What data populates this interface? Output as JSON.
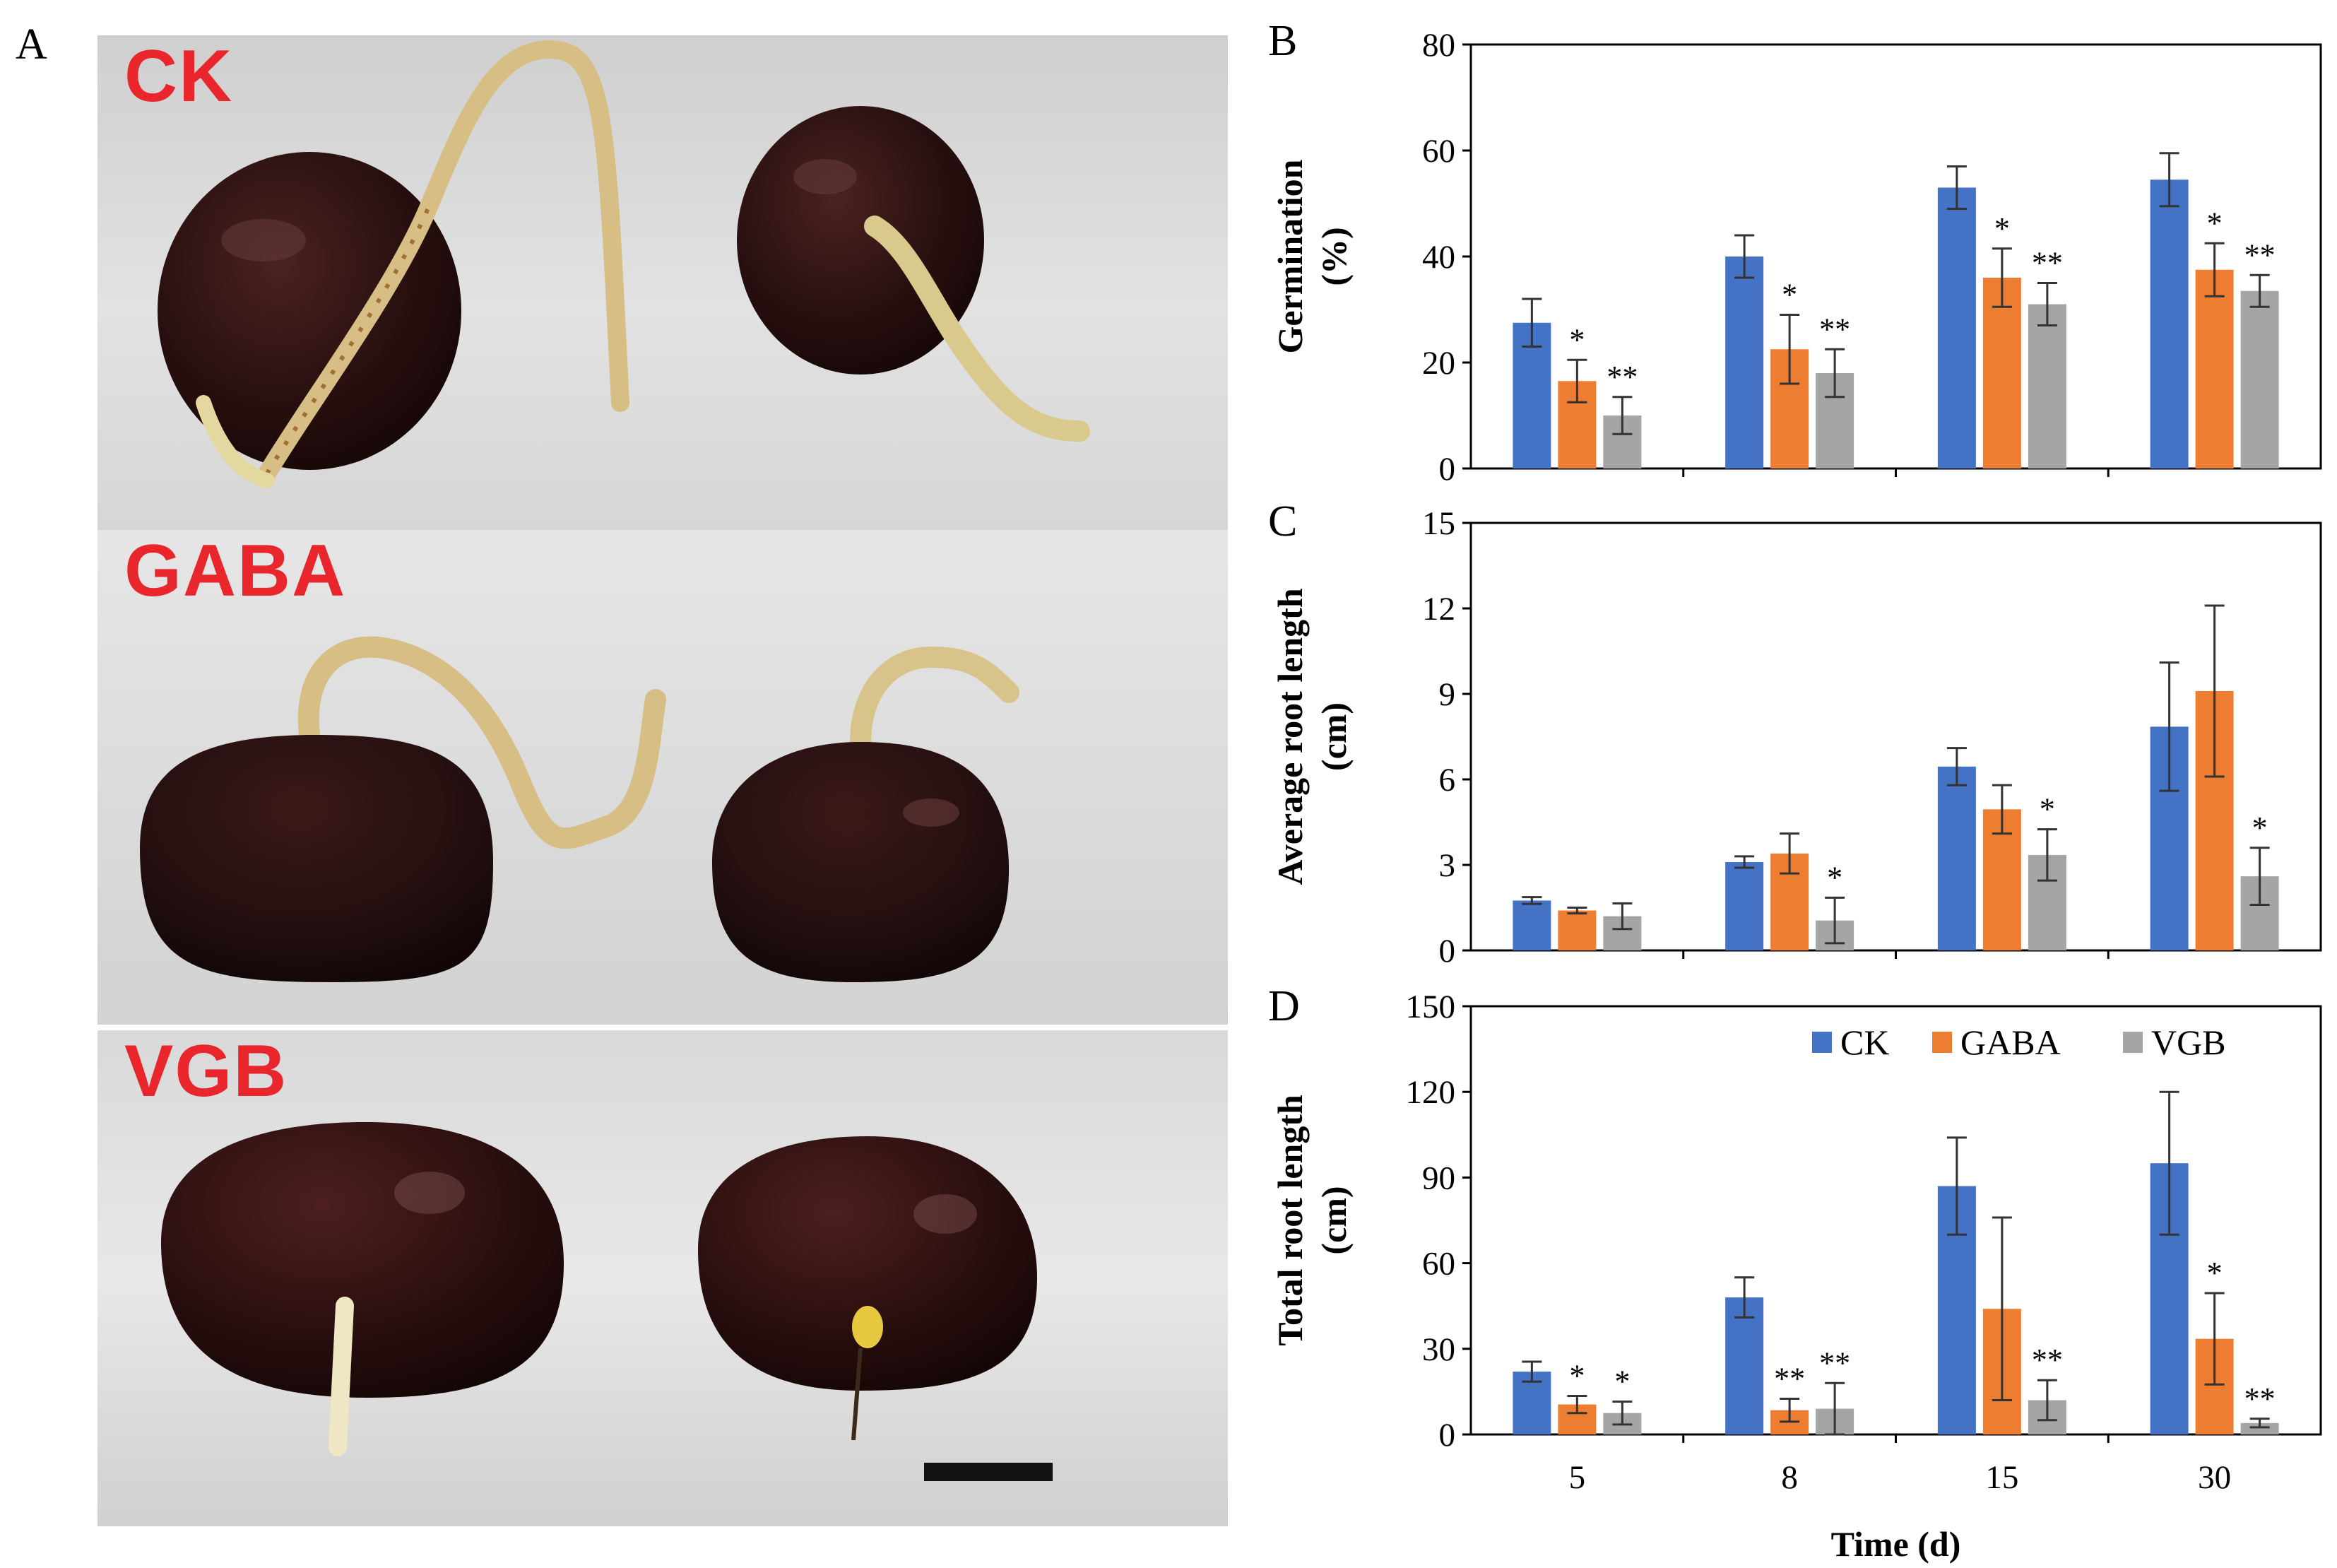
{
  "figure": {
    "panel_labels": [
      "A",
      "B",
      "C",
      "D"
    ],
    "photo_panels": [
      {
        "label": "CK"
      },
      {
        "label": "GABA"
      },
      {
        "label": "VGB"
      }
    ],
    "colors": {
      "label_red": "#e8262b",
      "photo_bg": "#dcdcdc",
      "seed": "#2a1212",
      "root": "#d9c48f",
      "scale_bar": "#111111"
    }
  },
  "chart_data": [
    {
      "panel": "B",
      "type": "bar",
      "categories": [
        "5",
        "8",
        "15",
        "30"
      ],
      "ylabel_lines": [
        "Germination",
        "(%)"
      ],
      "ylim": [
        0,
        80
      ],
      "yticks": [
        0,
        20,
        40,
        60,
        80
      ],
      "series": [
        {
          "name": "CK",
          "color": "#4472c4",
          "values": [
            27.5,
            40,
            53,
            54.5
          ],
          "errors": [
            4.5,
            4,
            4,
            5
          ]
        },
        {
          "name": "GABA",
          "color": "#ed7d31",
          "values": [
            16.5,
            22.5,
            36,
            37.5
          ],
          "errors": [
            4,
            6.5,
            5.5,
            5
          ]
        },
        {
          "name": "VGB",
          "color": "#a5a5a5",
          "values": [
            10,
            18,
            31,
            33.5
          ],
          "errors": [
            3.5,
            4.5,
            4,
            3
          ]
        }
      ],
      "annotations": [
        {
          "category": "5",
          "series": "GABA",
          "text": "*"
        },
        {
          "category": "5",
          "series": "VGB",
          "text": "**"
        },
        {
          "category": "8",
          "series": "GABA",
          "text": "*"
        },
        {
          "category": "8",
          "series": "VGB",
          "text": "**"
        },
        {
          "category": "15",
          "series": "GABA",
          "text": "*"
        },
        {
          "category": "15",
          "series": "VGB",
          "text": "**"
        },
        {
          "category": "30",
          "series": "GABA",
          "text": "*"
        },
        {
          "category": "30",
          "series": "VGB",
          "text": "**"
        }
      ]
    },
    {
      "panel": "C",
      "type": "bar",
      "categories": [
        "5",
        "8",
        "15",
        "30"
      ],
      "ylabel_lines": [
        "Average root length",
        "(cm)"
      ],
      "ylim": [
        0,
        15
      ],
      "yticks": [
        0,
        3,
        6,
        9,
        12,
        15
      ],
      "series": [
        {
          "name": "CK",
          "color": "#4472c4",
          "values": [
            1.75,
            3.1,
            6.45,
            7.85
          ],
          "errors": [
            0.12,
            0.2,
            0.65,
            2.25
          ]
        },
        {
          "name": "GABA",
          "color": "#ed7d31",
          "values": [
            1.4,
            3.4,
            4.95,
            9.1
          ],
          "errors": [
            0.1,
            0.7,
            0.85,
            3
          ]
        },
        {
          "name": "VGB",
          "color": "#a5a5a5",
          "values": [
            1.2,
            1.05,
            3.35,
            2.6
          ],
          "errors": [
            0.45,
            0.8,
            0.9,
            1
          ]
        }
      ],
      "annotations": [
        {
          "category": "8",
          "series": "VGB",
          "text": "*"
        },
        {
          "category": "15",
          "series": "VGB",
          "text": "*"
        },
        {
          "category": "30",
          "series": "VGB",
          "text": "*"
        }
      ]
    },
    {
      "panel": "D",
      "type": "bar",
      "categories": [
        "5",
        "8",
        "15",
        "30"
      ],
      "ylabel_lines": [
        "Total root length",
        "(cm)"
      ],
      "ylim": [
        0,
        150
      ],
      "yticks": [
        0,
        30,
        60,
        90,
        120,
        150
      ],
      "xlabel": "Time (d)",
      "legend": {
        "entries": [
          "CK",
          "GABA",
          "VGB"
        ],
        "placement": "top-right"
      },
      "series": [
        {
          "name": "CK",
          "color": "#4472c4",
          "values": [
            22,
            48,
            87,
            95
          ],
          "errors": [
            3.5,
            7,
            17,
            25
          ]
        },
        {
          "name": "GABA",
          "color": "#ed7d31",
          "values": [
            10.5,
            8.5,
            44,
            33.5
          ],
          "errors": [
            3,
            4,
            32,
            16
          ]
        },
        {
          "name": "VGB",
          "color": "#a5a5a5",
          "values": [
            7.5,
            9,
            12,
            4
          ],
          "errors": [
            4,
            9,
            7,
            1.5
          ]
        }
      ],
      "annotations": [
        {
          "category": "5",
          "series": "GABA",
          "text": "*"
        },
        {
          "category": "5",
          "series": "VGB",
          "text": "*"
        },
        {
          "category": "8",
          "series": "GABA",
          "text": "**"
        },
        {
          "category": "8",
          "series": "VGB",
          "text": "**"
        },
        {
          "category": "15",
          "series": "VGB",
          "text": "**"
        },
        {
          "category": "30",
          "series": "GABA",
          "text": "*"
        },
        {
          "category": "30",
          "series": "VGB",
          "text": "**"
        }
      ]
    }
  ]
}
